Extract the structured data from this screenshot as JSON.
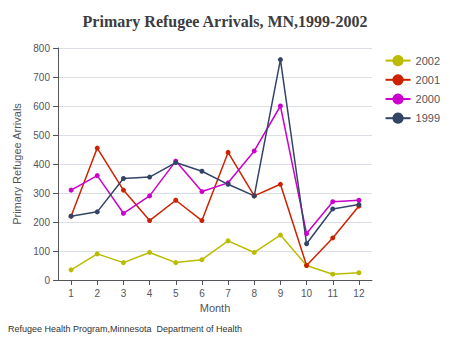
{
  "chart_data": {
    "type": "line",
    "title": "Primary Refugee Arrivals, MN,1999-2002",
    "xlabel": "Month",
    "ylabel": "Primary Refugee Arrivals",
    "annotations": [
      "Refugee Health Program,Minnesota  Department of Health"
    ],
    "x": [
      1,
      2,
      3,
      4,
      5,
      6,
      7,
      8,
      9,
      10,
      11,
      12
    ],
    "series": [
      {
        "name": "2002",
        "color": "#bbbb00",
        "marker": "circle",
        "line_style": "solid",
        "values": [
          35,
          90,
          60,
          95,
          60,
          70,
          135,
          95,
          155,
          50,
          20,
          25
        ]
      },
      {
        "name": "2001",
        "color": "#cc2200",
        "marker": "circle",
        "line_style": "solid",
        "values": [
          220,
          455,
          310,
          205,
          275,
          205,
          440,
          290,
          330,
          50,
          145,
          255
        ]
      },
      {
        "name": "2000",
        "color": "#cc00cc",
        "marker": "circle",
        "line_style": "solid",
        "values": [
          310,
          360,
          230,
          290,
          410,
          305,
          335,
          445,
          600,
          160,
          270,
          275
        ]
      },
      {
        "name": "1999",
        "color": "#334466",
        "marker": "circle",
        "line_style": "solid",
        "values": [
          220,
          235,
          350,
          355,
          405,
          375,
          330,
          290,
          760,
          125,
          245,
          260
        ]
      }
    ],
    "xlim": [
      0.5,
      12.5
    ],
    "xticks": [
      1,
      2,
      3,
      4,
      5,
      6,
      7,
      8,
      9,
      10,
      11,
      12
    ],
    "ylim": [
      0,
      800
    ],
    "yticks": [
      0,
      100,
      200,
      300,
      400,
      500,
      600,
      700,
      800
    ],
    "grid": "y",
    "legend": "right"
  }
}
